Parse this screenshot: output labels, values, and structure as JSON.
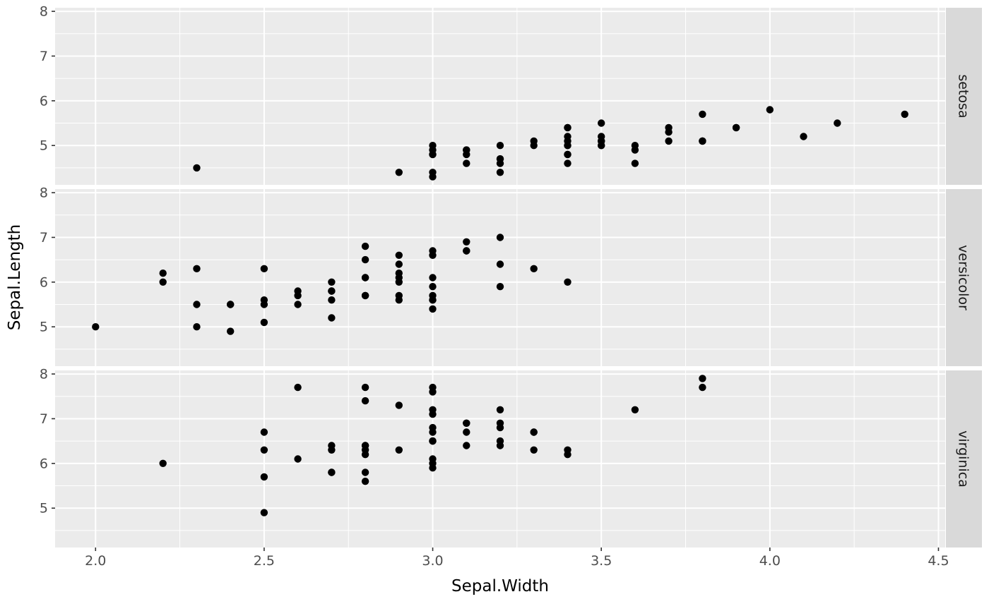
{
  "chart_data": {
    "type": "scatter",
    "title": "",
    "xlabel": "Sepal.Width",
    "ylabel": "Sepal.Length",
    "facet_layout": "rows",
    "legend": "none",
    "grid": true,
    "xlim": [
      1.88,
      4.52
    ],
    "ylim": [
      4.12,
      8.08
    ],
    "x_major_ticks": [
      2.0,
      2.5,
      3.0,
      3.5,
      4.0,
      4.5
    ],
    "x_tick_labels": [
      "2.0",
      "2.5",
      "3.0",
      "3.5",
      "4.0",
      "4.5"
    ],
    "x_minor_ticks": [
      2.25,
      2.75,
      3.25,
      3.75,
      4.25
    ],
    "y_major_ticks": [
      5,
      6,
      7,
      8
    ],
    "y_tick_labels": [
      "5",
      "6",
      "7",
      "8"
    ],
    "y_minor_ticks": [
      4.5,
      5.5,
      6.5,
      7.5
    ],
    "colors": {
      "background": "#FFFFFF",
      "panel_bg": "#EBEBEB",
      "grid": "#FFFFFF",
      "strip_bg": "#D9D9D9",
      "strip_text": "#1A1A1A",
      "tick_label": "#4D4D4D",
      "tick_mark": "#333333",
      "axis_title": "#000000",
      "point": "#000000"
    },
    "series": [
      {
        "name": "setosa",
        "points": [
          [
            3.5,
            5.1
          ],
          [
            3.0,
            4.9
          ],
          [
            3.2,
            4.7
          ],
          [
            3.1,
            4.6
          ],
          [
            3.6,
            5.0
          ],
          [
            3.9,
            5.4
          ],
          [
            3.4,
            4.6
          ],
          [
            3.4,
            5.0
          ],
          [
            2.9,
            4.4
          ],
          [
            3.1,
            4.9
          ],
          [
            3.7,
            5.4
          ],
          [
            3.4,
            4.8
          ],
          [
            3.0,
            4.8
          ],
          [
            3.0,
            4.3
          ],
          [
            4.0,
            5.8
          ],
          [
            4.4,
            5.7
          ],
          [
            3.9,
            5.4
          ],
          [
            3.5,
            5.1
          ],
          [
            3.8,
            5.7
          ],
          [
            3.8,
            5.1
          ],
          [
            3.4,
            5.4
          ],
          [
            3.7,
            5.1
          ],
          [
            3.6,
            4.6
          ],
          [
            3.3,
            5.1
          ],
          [
            3.4,
            4.8
          ],
          [
            3.0,
            5.0
          ],
          [
            3.4,
            5.0
          ],
          [
            3.5,
            5.2
          ],
          [
            3.4,
            5.2
          ],
          [
            3.2,
            4.7
          ],
          [
            3.1,
            4.8
          ],
          [
            3.4,
            5.4
          ],
          [
            4.1,
            5.2
          ],
          [
            4.2,
            5.5
          ],
          [
            3.1,
            4.9
          ],
          [
            3.2,
            5.0
          ],
          [
            3.5,
            5.5
          ],
          [
            3.6,
            4.9
          ],
          [
            3.0,
            4.4
          ],
          [
            3.4,
            5.1
          ],
          [
            3.5,
            5.0
          ],
          [
            2.3,
            4.5
          ],
          [
            3.2,
            4.4
          ],
          [
            3.5,
            5.0
          ],
          [
            3.8,
            5.1
          ],
          [
            3.0,
            4.8
          ],
          [
            3.8,
            5.1
          ],
          [
            3.2,
            4.6
          ],
          [
            3.7,
            5.3
          ],
          [
            3.3,
            5.0
          ]
        ]
      },
      {
        "name": "versicolor",
        "points": [
          [
            3.2,
            7.0
          ],
          [
            3.2,
            6.4
          ],
          [
            3.1,
            6.9
          ],
          [
            2.3,
            5.5
          ],
          [
            2.8,
            6.5
          ],
          [
            2.8,
            5.7
          ],
          [
            3.3,
            6.3
          ],
          [
            2.4,
            4.9
          ],
          [
            2.9,
            6.6
          ],
          [
            2.7,
            5.2
          ],
          [
            2.0,
            5.0
          ],
          [
            3.0,
            5.9
          ],
          [
            2.2,
            6.0
          ],
          [
            2.9,
            6.1
          ],
          [
            2.9,
            5.6
          ],
          [
            3.1,
            6.7
          ],
          [
            3.0,
            5.6
          ],
          [
            2.7,
            5.8
          ],
          [
            2.2,
            6.2
          ],
          [
            2.5,
            5.6
          ],
          [
            3.2,
            5.9
          ],
          [
            2.8,
            6.1
          ],
          [
            2.5,
            6.3
          ],
          [
            2.8,
            6.1
          ],
          [
            2.9,
            6.4
          ],
          [
            3.0,
            6.6
          ],
          [
            2.8,
            6.8
          ],
          [
            3.0,
            6.7
          ],
          [
            2.9,
            6.0
          ],
          [
            2.6,
            5.7
          ],
          [
            2.4,
            5.5
          ],
          [
            2.4,
            5.5
          ],
          [
            2.7,
            5.8
          ],
          [
            2.7,
            6.0
          ],
          [
            3.0,
            5.4
          ],
          [
            3.4,
            6.0
          ],
          [
            3.1,
            6.7
          ],
          [
            2.3,
            6.3
          ],
          [
            3.0,
            5.6
          ],
          [
            2.5,
            5.5
          ],
          [
            2.6,
            5.5
          ],
          [
            3.0,
            6.1
          ],
          [
            2.6,
            5.8
          ],
          [
            2.3,
            5.0
          ],
          [
            2.7,
            5.6
          ],
          [
            3.0,
            5.7
          ],
          [
            2.9,
            5.7
          ],
          [
            2.9,
            6.2
          ],
          [
            2.5,
            5.1
          ],
          [
            2.8,
            5.7
          ]
        ]
      },
      {
        "name": "virginica",
        "points": [
          [
            3.3,
            6.3
          ],
          [
            2.7,
            5.8
          ],
          [
            3.0,
            7.1
          ],
          [
            2.9,
            6.3
          ],
          [
            3.0,
            6.5
          ],
          [
            3.0,
            7.6
          ],
          [
            2.5,
            4.9
          ],
          [
            2.9,
            7.3
          ],
          [
            2.5,
            6.7
          ],
          [
            3.6,
            7.2
          ],
          [
            3.2,
            6.5
          ],
          [
            2.7,
            6.4
          ],
          [
            3.0,
            6.8
          ],
          [
            2.5,
            5.7
          ],
          [
            2.8,
            5.8
          ],
          [
            3.2,
            6.4
          ],
          [
            3.0,
            6.5
          ],
          [
            3.8,
            7.7
          ],
          [
            2.6,
            7.7
          ],
          [
            2.2,
            6.0
          ],
          [
            3.2,
            6.9
          ],
          [
            2.8,
            5.6
          ],
          [
            2.8,
            7.7
          ],
          [
            2.7,
            6.3
          ],
          [
            3.3,
            6.7
          ],
          [
            3.2,
            7.2
          ],
          [
            2.8,
            6.2
          ],
          [
            3.0,
            6.1
          ],
          [
            2.8,
            6.4
          ],
          [
            3.0,
            7.2
          ],
          [
            2.8,
            7.4
          ],
          [
            3.8,
            7.9
          ],
          [
            2.8,
            6.4
          ],
          [
            2.8,
            6.3
          ],
          [
            2.6,
            6.1
          ],
          [
            3.0,
            7.7
          ],
          [
            3.4,
            6.3
          ],
          [
            3.1,
            6.4
          ],
          [
            3.0,
            6.0
          ],
          [
            3.1,
            6.9
          ],
          [
            3.1,
            6.7
          ],
          [
            3.1,
            6.9
          ],
          [
            2.7,
            5.8
          ],
          [
            3.2,
            6.8
          ],
          [
            3.3,
            6.7
          ],
          [
            3.0,
            6.7
          ],
          [
            2.5,
            6.3
          ],
          [
            3.0,
            6.5
          ],
          [
            3.4,
            6.2
          ],
          [
            3.0,
            5.9
          ]
        ]
      }
    ]
  }
}
